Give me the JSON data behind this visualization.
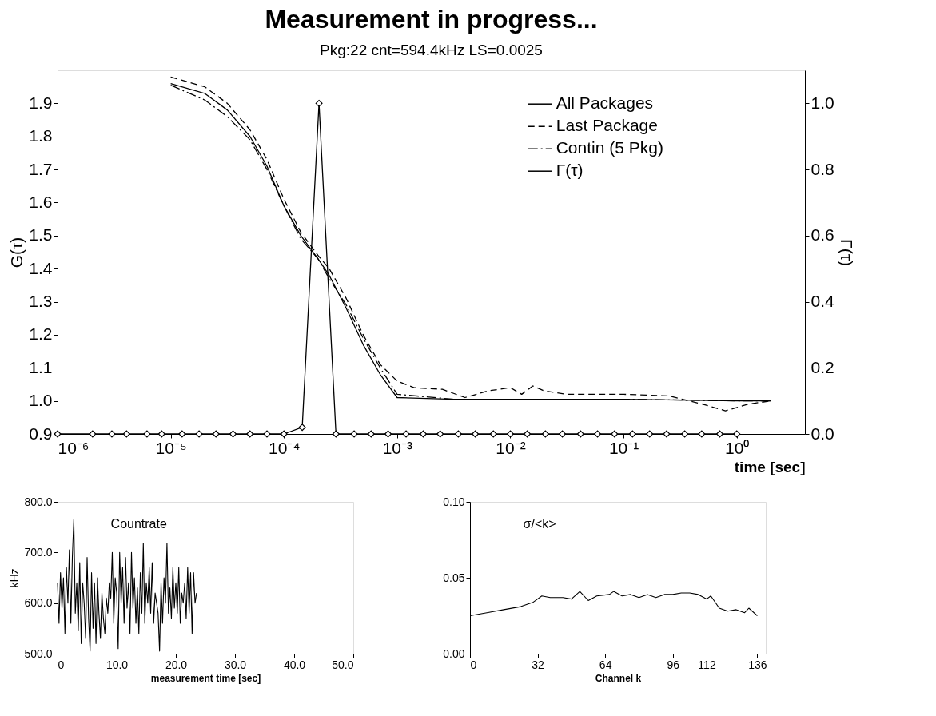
{
  "chart_data": [
    {
      "type": "line",
      "title": "Measurement in progress...",
      "subtitle": "Pkg:22 cnt=594.4kHz LS=0.0025",
      "xlabel": "time [sec]",
      "ylabel": "G(τ)",
      "y2label": "Γ(τ)",
      "log": "x",
      "grid": false,
      "legend": "top right",
      "xlim": [
        1e-06,
        4
      ],
      "xticks": [
        {
          "value": 1e-06,
          "label": "10⁻⁶"
        },
        {
          "value": 1e-05,
          "label": "10⁻⁵"
        },
        {
          "value": 0.0001,
          "label": "10⁻⁴"
        },
        {
          "value": 0.001,
          "label": "10⁻³"
        },
        {
          "value": 0.01,
          "label": "10⁻²"
        },
        {
          "value": 0.1,
          "label": "10⁻¹"
        },
        {
          "value": 1,
          "label": "10⁰"
        }
      ],
      "ylim": [
        0.9,
        2.0
      ],
      "yticks": [
        0.9,
        {
          "value": 1.0,
          "label": "1.0"
        },
        1.1,
        1.2,
        1.3,
        1.4,
        1.5,
        1.6,
        1.7,
        1.8,
        1.9
      ],
      "y2lim": [
        0,
        1.1
      ],
      "y2ticks": [
        {
          "value": 0,
          "label": "0.0"
        },
        0.2,
        0.4,
        0.6,
        0.8,
        {
          "value": 1.0,
          "label": "1.0"
        }
      ],
      "series": [
        {
          "name": "All Packages",
          "color": "#000000",
          "line_style": "solid",
          "x": [
            1e-05,
            2e-05,
            3.16e-05,
            5.01e-05,
            7.08e-05,
            0.0001,
            0.000141,
            0.0002,
            0.000251,
            0.000355,
            0.000501,
            0.000708,
            0.001,
            0.00316,
            0.01,
            0.1,
            1,
            2
          ],
          "values": [
            1.96,
            1.93,
            1.88,
            1.8,
            1.71,
            1.59,
            1.5,
            1.43,
            1.38,
            1.28,
            1.17,
            1.08,
            1.01,
            1.005,
            1.005,
            1.005,
            1.0,
            1.0
          ]
        },
        {
          "name": "Last Package",
          "color": "#000000",
          "line_style": "dashed",
          "x": [
            1e-05,
            2e-05,
            3.16e-05,
            5.01e-05,
            7.08e-05,
            0.0001,
            0.000141,
            0.0002,
            0.000251,
            0.000355,
            0.000501,
            0.000708,
            0.001,
            0.00141,
            0.00251,
            0.00398,
            0.00631,
            0.01,
            0.0126,
            0.0158,
            0.02,
            0.0316,
            0.0631,
            0.1,
            0.251,
            0.501,
            0.794,
            1.26,
            2
          ],
          "values": [
            1.98,
            1.95,
            1.9,
            1.82,
            1.73,
            1.61,
            1.51,
            1.44,
            1.4,
            1.31,
            1.2,
            1.11,
            1.06,
            1.04,
            1.035,
            1.01,
            1.03,
            1.04,
            1.02,
            1.045,
            1.03,
            1.02,
            1.02,
            1.02,
            1.015,
            0.99,
            0.97,
            0.99,
            1.0
          ]
        },
        {
          "name": "Contin (5 Pkg)",
          "color": "#000000",
          "line_style": "dotted",
          "x": [
            1e-05,
            2e-05,
            3.16e-05,
            5.01e-05,
            7.08e-05,
            0.0001,
            0.000141,
            0.0002,
            0.000251,
            0.000355,
            0.000501,
            0.000708,
            0.001,
            0.00316,
            0.1,
            1,
            2
          ],
          "values": [
            1.955,
            1.91,
            1.86,
            1.79,
            1.7,
            1.59,
            1.49,
            1.43,
            1.37,
            1.29,
            1.19,
            1.1,
            1.02,
            1.005,
            1.005,
            1.0,
            1.0
          ]
        },
        {
          "name": "Γ(τ)",
          "color": "#000000",
          "line_style": "solid",
          "marker": "diamond",
          "axis": "y2",
          "x": [
            1e-06,
            2.04e-06,
            3.02e-06,
            4.07e-06,
            6.17e-06,
            8.32e-06,
            1.26e-05,
            1.78e-05,
            2.51e-05,
            3.55e-05,
            5.01e-05,
            7.08e-05,
            0.0001,
            0.000145,
            0.000204,
            0.000288,
            0.000417,
            0.000589,
            0.000832,
            0.0012,
            0.0017,
            0.0024,
            0.00347,
            0.0049,
            0.00708,
            0.01,
            0.0141,
            0.0204,
            0.0288,
            0.0417,
            0.0589,
            0.0832,
            0.12,
            0.17,
            0.24,
            0.347,
            0.49,
            0.708,
            1
          ],
          "values": [
            0,
            0,
            0,
            0,
            0,
            0,
            0,
            0,
            0,
            0,
            0,
            0,
            0,
            0.02,
            1.0,
            0,
            0,
            0,
            0,
            0,
            0,
            0,
            0,
            0,
            0,
            0,
            0,
            0,
            0,
            0,
            0,
            0,
            0,
            0,
            0,
            0,
            0,
            0,
            0
          ]
        }
      ]
    },
    {
      "type": "line",
      "xlabel": "measurement time [sec]",
      "ylabel": "kHz",
      "grid": false,
      "annotations": [
        "Countrate"
      ],
      "xlim": [
        0,
        50
      ],
      "xticks": [
        0,
        {
          "value": 10,
          "label": "10.0"
        },
        {
          "value": 20,
          "label": "20.0"
        },
        {
          "value": 30,
          "label": "30.0"
        },
        {
          "value": 40,
          "label": "40.0"
        },
        {
          "value": 50,
          "label": "50.0"
        }
      ],
      "ylim": [
        500,
        800
      ],
      "yticks": [
        {
          "value": 500,
          "label": "500.0"
        },
        {
          "value": 600,
          "label": "600.0"
        },
        {
          "value": 700,
          "label": "700.0"
        },
        {
          "value": 800,
          "label": "800.0"
        }
      ],
      "series": [
        {
          "color": "#000000",
          "line_style": "solid",
          "x": [
            0,
            0.25,
            0.5,
            0.75,
            1,
            1.25,
            1.5,
            1.75,
            2,
            2.25,
            2.5,
            2.75,
            3,
            3.25,
            3.5,
            3.75,
            4,
            4.25,
            4.5,
            4.75,
            5,
            5.25,
            5.5,
            5.75,
            6,
            6.25,
            6.5,
            6.75,
            7,
            7.25,
            7.5,
            7.75,
            8,
            8.25,
            8.5,
            8.75,
            9,
            9.25,
            9.5,
            9.75,
            10,
            10.25,
            10.5,
            10.75,
            11,
            11.25,
            11.5,
            11.75,
            12,
            12.25,
            12.5,
            12.75,
            13,
            13.25,
            13.5,
            13.75,
            14,
            14.25,
            14.5,
            14.75,
            15,
            15.25,
            15.5,
            15.75,
            16,
            16.25,
            16.5,
            16.75,
            17,
            17.25,
            17.5,
            17.75,
            18,
            18.25,
            18.5,
            18.75,
            19,
            19.25,
            19.5,
            19.75,
            20,
            20.25,
            20.5,
            20.75,
            21,
            21.25,
            21.5,
            21.75,
            22,
            22.25,
            22.5,
            22.75,
            23,
            23.25,
            23.5
          ],
          "values": [
            640,
            560,
            660,
            590,
            650,
            540,
            670,
            600,
            705,
            560,
            690,
            765,
            580,
            640,
            545,
            680,
            520,
            640,
            600,
            530,
            690,
            570,
            505,
            660,
            550,
            640,
            520,
            650,
            580,
            530,
            620,
            570,
            540,
            610,
            580,
            640,
            610,
            700,
            560,
            650,
            620,
            510,
            700,
            600,
            670,
            560,
            690,
            590,
            640,
            540,
            700,
            590,
            650,
            560,
            630,
            540,
            660,
            580,
            718,
            560,
            640,
            600,
            670,
            580,
            680,
            560,
            620,
            600,
            580,
            505,
            640,
            560,
            650,
            600,
            718,
            580,
            630,
            570,
            670,
            590,
            640,
            580,
            670,
            560,
            620,
            600,
            640,
            570,
            670,
            580,
            660,
            540,
            660,
            600,
            620
          ]
        }
      ]
    },
    {
      "type": "line",
      "xlabel": "Channel k",
      "grid": false,
      "annotations": [
        "σ/<k>"
      ],
      "xlim": [
        0,
        140
      ],
      "xticks": [
        0,
        32,
        64,
        96,
        112,
        136
      ],
      "ylim": [
        0,
        0.1
      ],
      "yticks": [
        {
          "value": 0,
          "label": "0.00"
        },
        {
          "value": 0.05,
          "label": "0.05"
        },
        {
          "value": 0.1,
          "label": "0.10"
        }
      ],
      "series": [
        {
          "color": "#000000",
          "line_style": "solid",
          "x": [
            0,
            8,
            16,
            24,
            30,
            34,
            38,
            44,
            48,
            52,
            56,
            60,
            66,
            68,
            72,
            76,
            80,
            84,
            88,
            92,
            96,
            100,
            104,
            108,
            112,
            114,
            118,
            122,
            126,
            130,
            132,
            136
          ],
          "values": [
            0.025,
            0.027,
            0.029,
            0.031,
            0.034,
            0.038,
            0.037,
            0.037,
            0.036,
            0.041,
            0.035,
            0.038,
            0.039,
            0.041,
            0.038,
            0.039,
            0.037,
            0.039,
            0.037,
            0.039,
            0.039,
            0.04,
            0.04,
            0.039,
            0.036,
            0.038,
            0.03,
            0.028,
            0.029,
            0.027,
            0.03,
            0.025
          ]
        }
      ]
    }
  ]
}
